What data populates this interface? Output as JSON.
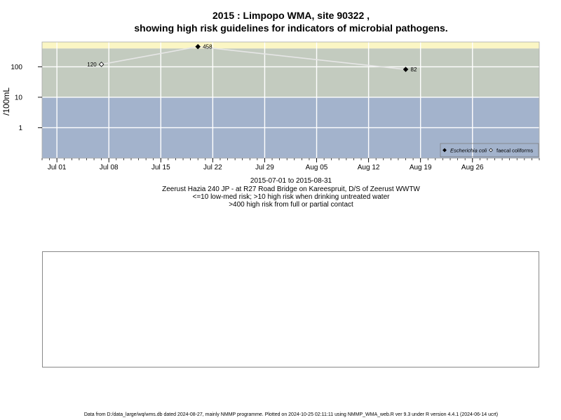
{
  "titles": {
    "line1": "2015 : Limpopo WMA, site 90322 ,",
    "line2": "showing high risk guidelines for indicators of microbial pathogens."
  },
  "captions": {
    "date_range": "2015-07-01 to 2015-08-31",
    "site": "Zeerust Hazia 240 JP - at R27 Road Bridge on Kareespruit, D/S of Zeerust WWTW",
    "risk_low": "<=10 low-med risk; >10 high risk when drinking untreated water",
    "risk_high": ">400 high risk from full or partial contact"
  },
  "footer": "Data from D:/data_large/wq/wms.db dated 2024-08-27, mainly NMMP programme. Plotted on 2024-10-25 02:11:11 using NMMP_WMA_web.R ver 9.3 under R version 4.4.1 (2024-06-14 ucrt)",
  "chart_data": {
    "type": "scatter",
    "ylabel": "/100mL",
    "y_scale": "log",
    "ylim": [
      0.1,
      650
    ],
    "xlim": [
      "2015-06-29",
      "2015-09-04"
    ],
    "x_ticks": [
      {
        "date": "2015-07-01",
        "label": "Jul 01"
      },
      {
        "date": "2015-07-08",
        "label": "Jul 08"
      },
      {
        "date": "2015-07-15",
        "label": "Jul 15"
      },
      {
        "date": "2015-07-22",
        "label": "Jul 22"
      },
      {
        "date": "2015-07-29",
        "label": "Jul 29"
      },
      {
        "date": "2015-08-05",
        "label": "Aug 05"
      },
      {
        "date": "2015-08-12",
        "label": "Aug 12"
      },
      {
        "date": "2015-08-19",
        "label": "Aug 19"
      },
      {
        "date": "2015-08-26",
        "label": "Aug 26"
      }
    ],
    "y_ticks": [
      {
        "value": 1,
        "label": "1"
      },
      {
        "value": 10,
        "label": "10"
      },
      {
        "value": 100,
        "label": "100"
      }
    ],
    "bands": [
      {
        "from": 0.1,
        "to": 10,
        "color": "#a3b3cc"
      },
      {
        "from": 10,
        "to": 400,
        "color": "#c3cbbf"
      },
      {
        "from": 400,
        "to": 650,
        "color": "#fbf6c4"
      }
    ],
    "grid": true,
    "connector_color": "#e6e6e6",
    "series": [
      {
        "name": "Escherichia coli",
        "marker": "filled-diamond",
        "points": [
          {
            "x": "2015-07-20",
            "y": 458,
            "label": "458"
          },
          {
            "x": "2015-08-17",
            "y": 82,
            "label": "82"
          }
        ]
      },
      {
        "name": "faecal coliforms",
        "marker": "open-diamond",
        "points": [
          {
            "x": "2015-07-07",
            "y": 120,
            "label": "120"
          }
        ]
      }
    ],
    "legend_position": "bottom-right"
  }
}
